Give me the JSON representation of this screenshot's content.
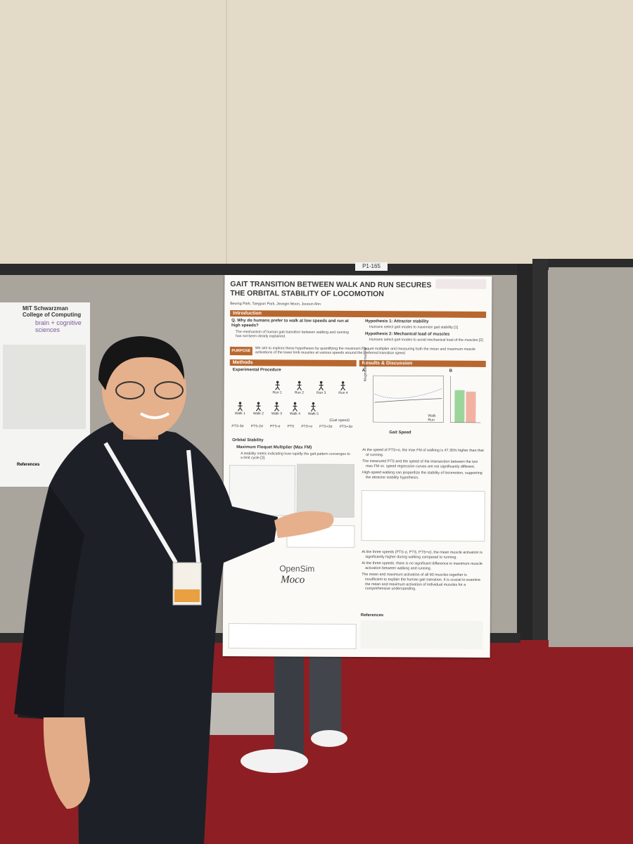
{
  "board_label": "P1-165",
  "left_poster": {
    "institution": "MIT Schwarzman College of Computing",
    "department": "brain + cognitive sciences",
    "references_heading": "References"
  },
  "poster": {
    "title": "GAIT TRANSITION BETWEEN WALK AND RUN SECURES THE ORBITAL STABILITY OF LOCOMOTION",
    "authors": "Beomg Park, Taegyun Park, Jeongin Moon, Jooeun Ahn",
    "introduction": {
      "heading": "Introduction",
      "question": "Q. Why do humans prefer to walk at low speeds and run at high speeds?",
      "point": "The mechanism of human gait transition between walking and running has not been clearly explained.",
      "hypotheses": [
        {
          "title": "Hypothesis 1: Attractor stability",
          "text": "Humans select gait modes to maximize gait stability [1]"
        },
        {
          "title": "Hypothesis 2: Mechanical load of muscles",
          "text": "Humans select gait modes to avoid mechanical load of the muscles [2]"
        }
      ]
    },
    "purpose": {
      "label": "PURPOSE",
      "text": "We aim to explore these hypotheses by quantifying the maximum Floquet multiplier and measuring both the mean and maximum muscle activations of the lower limb muscles at various speeds around the preferred transition speed"
    },
    "methods": {
      "heading": "Methods",
      "procedure_heading": "Experimental Procedure",
      "run_labels": [
        "Run 1",
        "Run 2",
        "Run 3",
        "Run 4"
      ],
      "walk_labels": [
        "Walk 1",
        "Walk 2",
        "Walk 3",
        "Walk 4",
        "Walk 5"
      ],
      "speed_labels": [
        "PTS-3σ",
        "PTS-2σ",
        "PTS-σ",
        "PTS",
        "PTS+σ",
        "PTS+2σ",
        "PTS+3σ"
      ],
      "speed_axis_label": "(Gait speed)",
      "stability_heading": "Orbital Stability",
      "metric_heading": "Maximum Floquet Multiplier (Max FM)",
      "metric_text": "A stability metric indicating how rapidly the gait pattern converges to a limit cycle [3].",
      "software": [
        "OpenSim",
        "Moco"
      ]
    },
    "results": {
      "heading": "Results & Discussion",
      "panel_labels": [
        "A",
        "B"
      ],
      "x_axis_label": "Gait Speed",
      "y_axis_label": "Magnitude of max FM",
      "legend": [
        "Walk",
        "Run"
      ],
      "findings": [
        "At the speed of PTS+σ, the max FM of walking is 47.35% higher than that of running.",
        "The measured PTS and the speed of the intersection between the two max FM vs. speed regression curves are not significantly different.",
        "High-speed walking can jeopardize the stability of locomotion, supporting the attractor stability hypothesis."
      ],
      "muscle_findings": [
        "At the three speeds (PTS-σ, PTS, PTS+σ), the mean muscle activation is significantly higher during walking compared to running.",
        "At the three speeds, there is no significant difference in maximum muscle activation between walking and running.",
        "The mean and maximum activation of all 80 muscles together is insufficient to explain the human gait transition. It is crucial to examine the mean and maximum activation of individual muscles for a comprehensive understanding."
      ]
    },
    "references_heading": "References"
  }
}
